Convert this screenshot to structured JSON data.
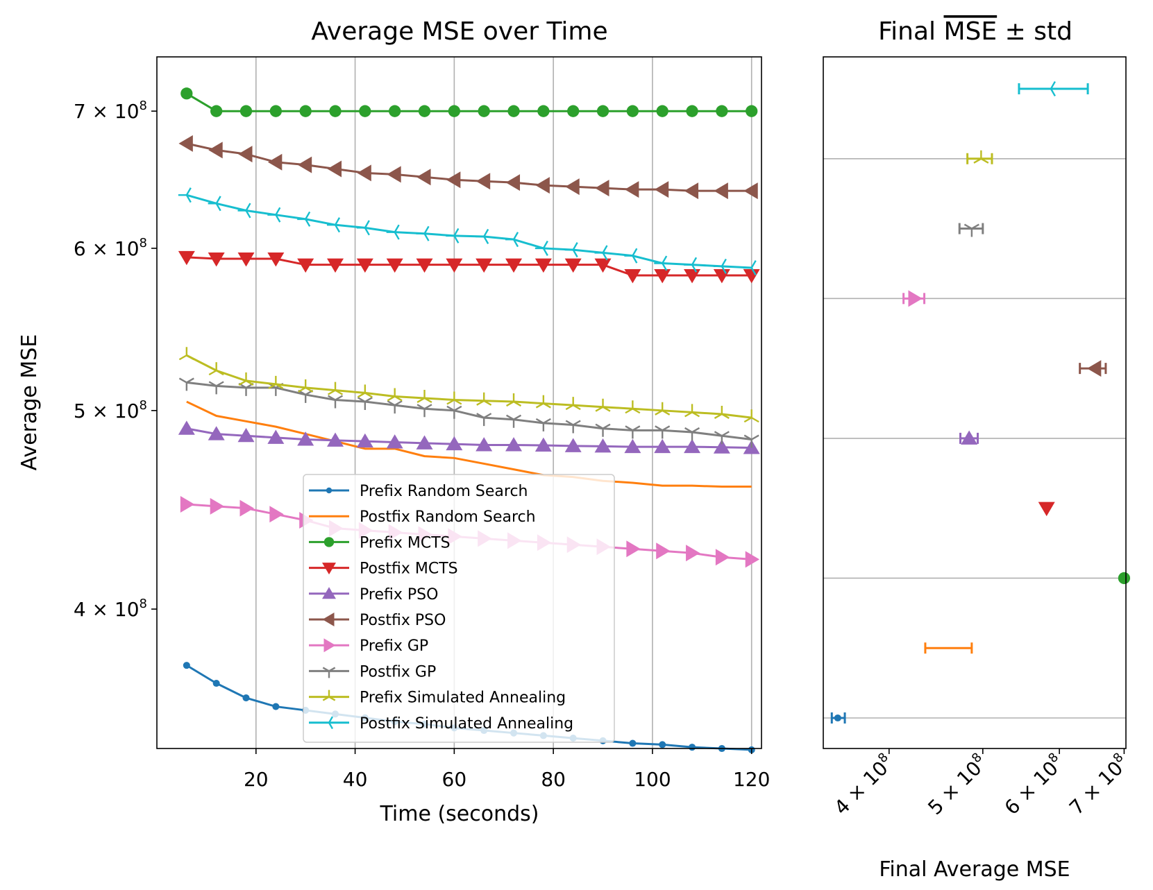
{
  "chart_data": [
    {
      "type": "line",
      "title": "Average MSE over Time",
      "xlabel": "Time (seconds)",
      "ylabel": "Average MSE",
      "yscale": "log",
      "xlim": [
        0,
        122
      ],
      "ylim": [
        342000000,
        744000000
      ],
      "xticks": [
        20,
        40,
        60,
        80,
        100,
        120
      ],
      "yticks": [
        {
          "value": 400000000,
          "base": "4 × 10",
          "exp": "8"
        },
        {
          "value": 500000000,
          "base": "5 × 10",
          "exp": "8"
        },
        {
          "value": 600000000,
          "base": "6 × 10",
          "exp": "8"
        },
        {
          "value": 700000000,
          "base": "7 × 10",
          "exp": "8"
        }
      ],
      "grid": "x",
      "legend_position": "lower-center",
      "x": [
        6,
        12,
        18,
        24,
        30,
        36,
        42,
        48,
        54,
        60,
        66,
        72,
        78,
        84,
        90,
        96,
        102,
        108,
        114,
        120
      ],
      "series": [
        {
          "name": "Prefix Random Search",
          "color": "#1f77b4",
          "marker": "point",
          "values": [
            375500000.0,
            368000000.0,
            362000000.0,
            358500000.0,
            357000000.0,
            355500000.0,
            354000000.0,
            352500000.0,
            351500000.0,
            350000000.0,
            349000000.0,
            348000000.0,
            347000000.0,
            346000000.0,
            345000000.0,
            344000000.0,
            343500000.0,
            342500000.0,
            342000000.0,
            341500000.0
          ]
        },
        {
          "name": "Postfix Random Search",
          "color": "#ff7f0e",
          "marker": "none",
          "values": [
            505000000.0,
            497000000.0,
            494000000.0,
            491000000.0,
            487000000.0,
            483000000.0,
            479000000.0,
            479000000.0,
            475000000.0,
            474000000.0,
            471000000.0,
            468000000.0,
            465000000.0,
            464000000.0,
            462000000.0,
            461000000.0,
            459500000.0,
            459500000.0,
            459000000.0,
            459000000.0
          ]
        },
        {
          "name": "Prefix MCTS",
          "color": "#2ca02c",
          "marker": "circle",
          "values": [
            714000000.0,
            700000000.0,
            700000000.0,
            700000000.0,
            700000000.0,
            700000000.0,
            700000000.0,
            700000000.0,
            700000000.0,
            700000000.0,
            700000000.0,
            700000000.0,
            700000000.0,
            700000000.0,
            700000000.0,
            700000000.0,
            700000000.0,
            700000000.0,
            700000000.0,
            700000000.0
          ]
        },
        {
          "name": "Postfix MCTS",
          "color": "#d62728",
          "marker": "triangle-down",
          "values": [
            594000000.0,
            593000000.0,
            593000000.0,
            593000000.0,
            589000000.0,
            589000000.0,
            589000000.0,
            589000000.0,
            589000000.0,
            589000000.0,
            589000000.0,
            589000000.0,
            589000000.0,
            589000000.0,
            589000000.0,
            582000000.0,
            582000000.0,
            582000000.0,
            582000000.0,
            582000000.0
          ]
        },
        {
          "name": "Prefix PSO",
          "color": "#9467bd",
          "marker": "triangle-up",
          "values": [
            490000000.0,
            487000000.0,
            486000000.0,
            485000000.0,
            484000000.0,
            483500000.0,
            483000000.0,
            482500000.0,
            482000000.0,
            481500000.0,
            481000000.0,
            481000000.0,
            480800000.0,
            480500000.0,
            480300000.0,
            480000000.0,
            480000000.0,
            480000000.0,
            479800000.0,
            479500000.0
          ]
        },
        {
          "name": "Postfix PSO",
          "color": "#8c564b",
          "marker": "triangle-left",
          "values": [
            675000000.0,
            670000000.0,
            667000000.0,
            661000000.0,
            659000000.0,
            656000000.0,
            653000000.0,
            652000000.0,
            650000000.0,
            648000000.0,
            647000000.0,
            646000000.0,
            644000000.0,
            643000000.0,
            642000000.0,
            641000000.0,
            641000000.0,
            640000000.0,
            640000000.0,
            640000000.0
          ]
        },
        {
          "name": "Prefix GP",
          "color": "#e377c2",
          "marker": "triangle-right",
          "values": [
            450000000.0,
            449000000.0,
            448000000.0,
            445000000.0,
            442000000.0,
            438000000.0,
            437000000.0,
            436000000.0,
            435000000.0,
            434000000.0,
            433000000.0,
            432000000.0,
            431000000.0,
            430000000.0,
            429000000.0,
            428000000.0,
            427000000.0,
            426000000.0,
            424000000.0,
            423000000.0
          ]
        },
        {
          "name": "Postfix GP",
          "color": "#7f7f7f",
          "marker": "tri-down",
          "values": [
            516000000.0,
            514000000.0,
            513000000.0,
            513000000.0,
            509000000.0,
            506000000.0,
            505000000.0,
            503000000.0,
            501000000.0,
            500000000.0,
            496000000.0,
            495000000.0,
            493000000.0,
            492000000.0,
            490000000.0,
            489000000.0,
            489000000.0,
            488000000.0,
            486000000.0,
            484000000.0
          ]
        },
        {
          "name": "Prefix Simulated Annealing",
          "color": "#bcbd22",
          "marker": "tri-up",
          "values": [
            532000000.0,
            523000000.0,
            517000000.0,
            515000000.0,
            513000000.0,
            511500000.0,
            510000000.0,
            508000000.0,
            507000000.0,
            506000000.0,
            505500000.0,
            505000000.0,
            504000000.0,
            503000000.0,
            502000000.0,
            501000000.0,
            500000000.0,
            499000000.0,
            498000000.0,
            496000000.0
          ]
        },
        {
          "name": "Postfix Simulated Annealing",
          "color": "#17becf",
          "marker": "tri-left",
          "values": [
            637000000.0,
            631000000.0,
            626000000.0,
            623000000.0,
            620000000.0,
            616000000.0,
            614000000.0,
            611000000.0,
            610000000.0,
            608500000.0,
            608000000.0,
            606000000.0,
            600000000.0,
            599000000.0,
            597000000.0,
            595000000.0,
            590000000.0,
            589000000.0,
            588000000.0,
            587000000.0
          ]
        }
      ]
    },
    {
      "type": "errorbar",
      "title": "Final MSE ± std",
      "title_parts": {
        "prefix": "Final ",
        "overlined": "MSE",
        "suffix": " ± std"
      },
      "xlabel": "Final Average MSE",
      "xscale": "log",
      "xlim": [
        342000000,
        703000000
      ],
      "xticks": [
        {
          "value": 400000000,
          "base": "4 × 10",
          "exp": "8"
        },
        {
          "value": 500000000,
          "base": "5 × 10",
          "exp": "8"
        },
        {
          "value": 600000000,
          "base": "6 × 10",
          "exp": "8"
        },
        {
          "value": 700000000,
          "base": "7 × 10",
          "exp": "8"
        }
      ],
      "grid": "y-every-other",
      "points": [
        {
          "name": "Prefix Random Search",
          "color": "#1f77b4",
          "marker": "point",
          "mean": 354000000.0,
          "low": 349000000.0,
          "high": 360000000.0
        },
        {
          "name": "Postfix Random Search",
          "color": "#ff7f0e",
          "marker": "none",
          "mean": 462000000.0,
          "low": 436000000.0,
          "high": 487000000.0
        },
        {
          "name": "Prefix MCTS",
          "color": "#2ca02c",
          "marker": "circle",
          "mean": 700000000.0,
          "low": 700000000.0,
          "high": 700000000.0
        },
        {
          "name": "Postfix MCTS",
          "color": "#d62728",
          "marker": "triangle-down",
          "mean": 582000000.0,
          "low": 582000000.0,
          "high": 582000000.0
        },
        {
          "name": "Prefix PSO",
          "color": "#9467bd",
          "marker": "triangle-up",
          "mean": 484000000.0,
          "low": 474000000.0,
          "high": 494000000.0
        },
        {
          "name": "Postfix PSO",
          "color": "#8c564b",
          "marker": "triangle-left",
          "mean": 653000000.0,
          "low": 630000000.0,
          "high": 670000000.0
        },
        {
          "name": "Prefix GP",
          "color": "#e377c2",
          "marker": "triangle-right",
          "mean": 425000000.0,
          "low": 414000000.0,
          "high": 435000000.0
        },
        {
          "name": "Postfix GP",
          "color": "#7f7f7f",
          "marker": "tri-down",
          "mean": 487000000.0,
          "low": 473000000.0,
          "high": 500000000.0
        },
        {
          "name": "Prefix Simulated Annealing",
          "color": "#bcbd22",
          "marker": "tri-up",
          "mean": 498000000.0,
          "low": 482000000.0,
          "high": 511000000.0
        },
        {
          "name": "Postfix Simulated Annealing",
          "color": "#17becf",
          "marker": "tri-left",
          "mean": 588000000.0,
          "low": 545000000.0,
          "high": 642000000.0
        }
      ]
    }
  ]
}
